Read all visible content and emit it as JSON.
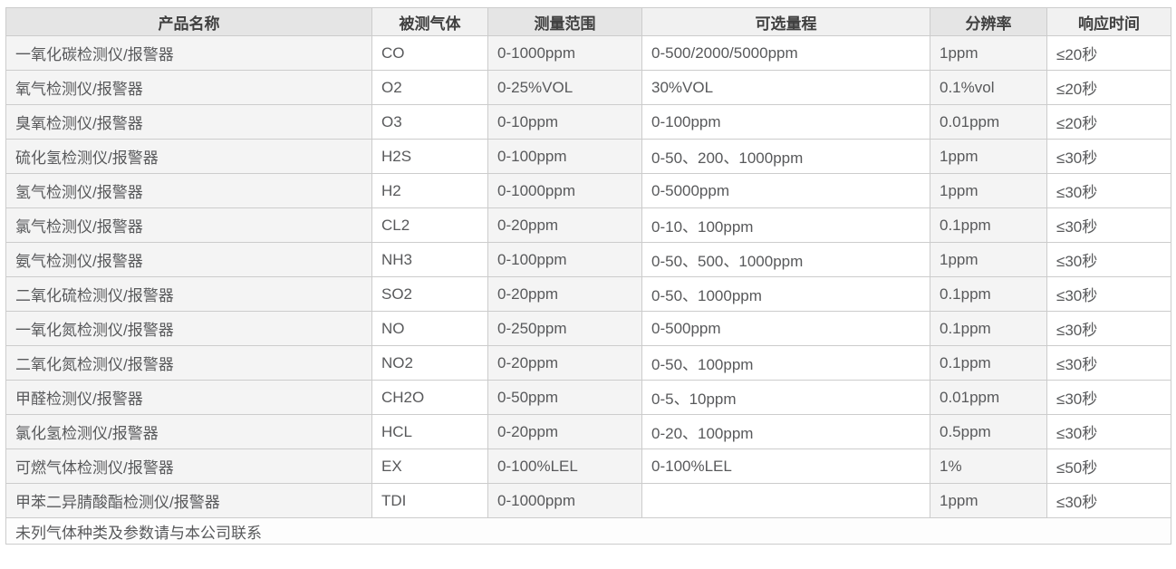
{
  "table": {
    "headers": [
      "产品名称",
      "被测气体",
      "测量范围",
      "可选量程",
      "分辨率",
      "响应时间"
    ],
    "rows": [
      [
        "一氧化碳检测仪/报警器",
        "CO",
        "0-1000ppm",
        "0-500/2000/5000ppm",
        "1ppm",
        "≤20秒"
      ],
      [
        "氧气检测仪/报警器",
        "O2",
        "0-25%VOL",
        "30%VOL",
        "0.1%vol",
        "≤20秒"
      ],
      [
        "臭氧检测仪/报警器",
        "O3",
        "0-10ppm",
        "0-100ppm",
        "0.01ppm",
        "≤20秒"
      ],
      [
        "硫化氢检测仪/报警器",
        "H2S",
        "0-100ppm",
        "0-50、200、1000ppm",
        "1ppm",
        "≤30秒"
      ],
      [
        "氢气检测仪/报警器",
        "H2",
        "0-1000ppm",
        "0-5000ppm",
        "1ppm",
        "≤30秒"
      ],
      [
        "氯气检测仪/报警器",
        "CL2",
        "0-20ppm",
        "0-10、100ppm",
        "0.1ppm",
        "≤30秒"
      ],
      [
        "氨气检测仪/报警器",
        "NH3",
        "0-100ppm",
        "0-50、500、1000ppm",
        "1ppm",
        "≤30秒"
      ],
      [
        "二氧化硫检测仪/报警器",
        "SO2",
        "0-20ppm",
        "0-50、1000ppm",
        "0.1ppm",
        "≤30秒"
      ],
      [
        "一氧化氮检测仪/报警器",
        "NO",
        "0-250ppm",
        "0-500ppm",
        "0.1ppm",
        "≤30秒"
      ],
      [
        "二氧化氮检测仪/报警器",
        "NO2",
        "0-20ppm",
        "0-50、100ppm",
        "0.1ppm",
        "≤30秒"
      ],
      [
        "甲醛检测仪/报警器",
        "CH2O",
        "0-50ppm",
        "0-5、10ppm",
        "0.01ppm",
        "≤30秒"
      ],
      [
        "氯化氢检测仪/报警器",
        "HCL",
        "0-20ppm",
        "0-20、100ppm",
        "0.5ppm",
        "≤30秒"
      ],
      [
        "可燃气体检测仪/报警器",
        "EX",
        "0-100%LEL",
        "0-100%LEL",
        "1%",
        "≤50秒"
      ],
      [
        "甲苯二异腈酸酯检测仪/报警器",
        "TDI",
        "0-1000ppm",
        "",
        "1ppm",
        "≤30秒"
      ]
    ],
    "footer_note": "未列气体种类及参数请与本公司联系"
  },
  "colors": {
    "header_odd": "#e5e5e5",
    "header_even": "#f1f1f1",
    "cell_odd": "#f4f4f4",
    "cell_even": "#ffffff",
    "footer_bg": "#fdfdfd",
    "border": "#cccccc",
    "header_text": "#404040",
    "cell_text": "#58595b"
  }
}
